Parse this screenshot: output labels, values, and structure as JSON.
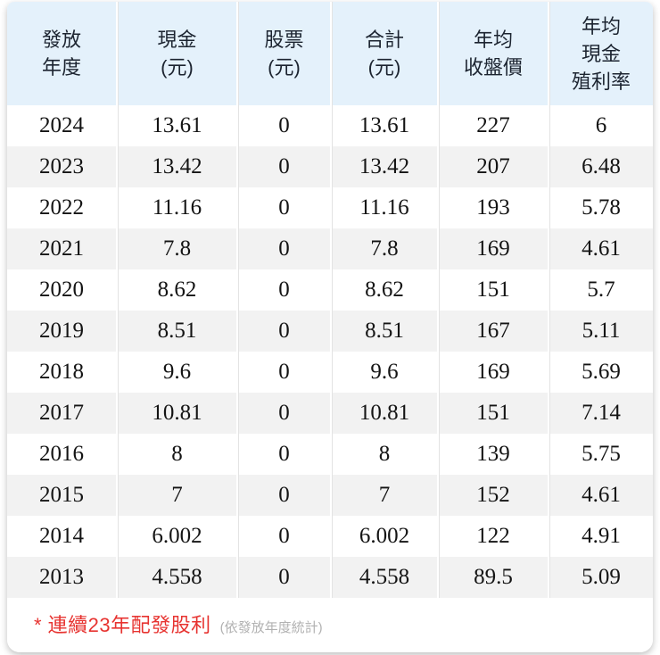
{
  "chart_data": {
    "type": "table",
    "columns": [
      "發放年度",
      "現金(元)",
      "股票(元)",
      "合計(元)",
      "年均收盤價",
      "年均現金殖利率"
    ],
    "column_header_lines": [
      [
        "發放",
        "年度"
      ],
      [
        "現金",
        "(元)"
      ],
      [
        "股票",
        "(元)"
      ],
      [
        "合計",
        "(元)"
      ],
      [
        "年均",
        "收盤價"
      ],
      [
        "年均",
        "現金",
        "殖利率"
      ]
    ],
    "rows": [
      [
        "2024",
        "13.61",
        "0",
        "13.61",
        "227",
        "6"
      ],
      [
        "2023",
        "13.42",
        "0",
        "13.42",
        "207",
        "6.48"
      ],
      [
        "2022",
        "11.16",
        "0",
        "11.16",
        "193",
        "5.78"
      ],
      [
        "2021",
        "7.8",
        "0",
        "7.8",
        "169",
        "4.61"
      ],
      [
        "2020",
        "8.62",
        "0",
        "8.62",
        "151",
        "5.7"
      ],
      [
        "2019",
        "8.51",
        "0",
        "8.51",
        "167",
        "5.11"
      ],
      [
        "2018",
        "9.6",
        "0",
        "9.6",
        "169",
        "5.69"
      ],
      [
        "2017",
        "10.81",
        "0",
        "10.81",
        "151",
        "7.14"
      ],
      [
        "2016",
        "8",
        "0",
        "8",
        "139",
        "5.75"
      ],
      [
        "2015",
        "7",
        "0",
        "7",
        "152",
        "4.61"
      ],
      [
        "2014",
        "6.002",
        "0",
        "6.002",
        "122",
        "4.91"
      ],
      [
        "2013",
        "4.558",
        "0",
        "4.558",
        "89.5",
        "5.09"
      ]
    ]
  },
  "footnote": {
    "highlight": "* 連續23年配發股利",
    "note": "(依發放年度統計)"
  },
  "colors": {
    "header_bg": "#e4f1fb",
    "row_alt_bg": "#f2f2f2",
    "divider": "#e3e3e3",
    "highlight_red": "#e73330",
    "note_gray": "#b1b1b1"
  }
}
